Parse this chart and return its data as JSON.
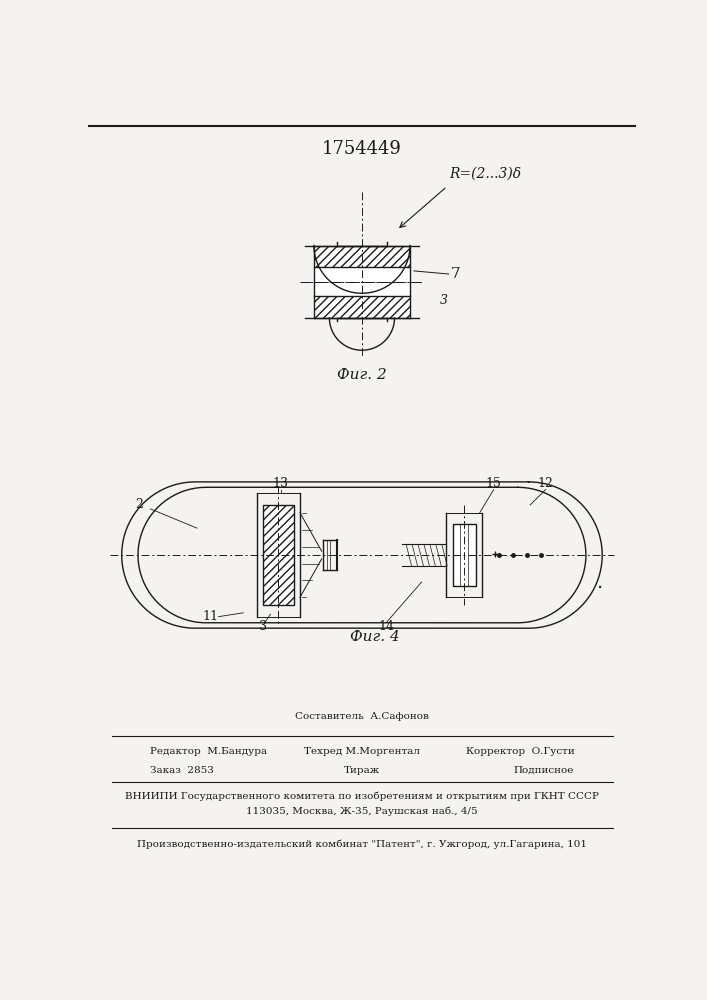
{
  "title": "1754449",
  "bg_color": "#f5f3f0",
  "line_color": "#1a1a1a",
  "fig2_label": "Фиг. 2",
  "fig4_label": "Фиг. 4",
  "label_R": "R=(2...3)δ",
  "label_7": "7",
  "label_3_small": "3",
  "footer_line1": "Составитель  А.Сафонов",
  "footer_line2_left": "Редактор  М.Бандура",
  "footer_line2_mid": "Техред М.Моргентал",
  "footer_line2_right": "Корректор  О.Густи",
  "footer_line3_left": "Заказ  2853",
  "footer_line3_mid": "Тираж",
  "footer_line3_right": "Подписное",
  "footer_line4": "ВНИИПИ Государственного комитета по изобретениям и открытиям при ГКНТ СССР",
  "footer_line5": "113035, Москва, Ж-35, Раушская наб., 4/5",
  "footer_line6": "Производственно-издательский комбинат \"Патент\", г. Ужгород, ул.Гагарина, 101"
}
